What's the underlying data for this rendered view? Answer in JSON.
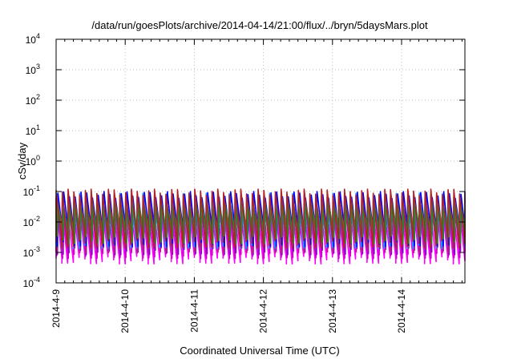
{
  "chart_data": {
    "type": "line",
    "title": "/data/run/goesPlots/archive/2014-04-14/21:00/flux/../bryn/5daysMars.plot",
    "xlabel": "Coordinated Universal Time (UTC)",
    "ylabel": "cSv/day",
    "yscale": "log",
    "ylim": [
      0.0001,
      10000
    ],
    "xlim": [
      "2014-04-09T00:00",
      "2014-04-14T22:00"
    ],
    "grid": true,
    "legend": "none",
    "y_ticks": [
      {
        "base": "10",
        "exp": "-4"
      },
      {
        "base": "10",
        "exp": "-3"
      },
      {
        "base": "10",
        "exp": "-2"
      },
      {
        "base": "10",
        "exp": "-1"
      },
      {
        "base": "10",
        "exp": "0"
      },
      {
        "base": "10",
        "exp": "1"
      },
      {
        "base": "10",
        "exp": "2"
      },
      {
        "base": "10",
        "exp": "3"
      },
      {
        "base": "10",
        "exp": "4"
      }
    ],
    "x_ticks": [
      "2014-4-9",
      "2014-4-10",
      "2014-4-11",
      "2014-4-12",
      "2014-4-13",
      "2014-4-14"
    ],
    "pattern": {
      "period_hours": 2,
      "series_colors": [
        "#ff00ff",
        "#cc00cc",
        "#8800cc",
        "#8a2be2",
        "#c71585",
        "#0000ff",
        "#1e90ff",
        "#00b0b0",
        "#228b22",
        "#b22222"
      ],
      "peak_values": [
        0.02,
        0.03,
        0.045,
        0.06,
        0.05,
        0.08,
        0.07,
        0.04,
        0.035,
        0.1
      ],
      "trough_values": [
        0.0006,
        0.0009,
        0.0012,
        0.0016,
        0.0014,
        0.0022,
        0.0019,
        0.0035,
        0.0028,
        0.002
      ]
    }
  }
}
